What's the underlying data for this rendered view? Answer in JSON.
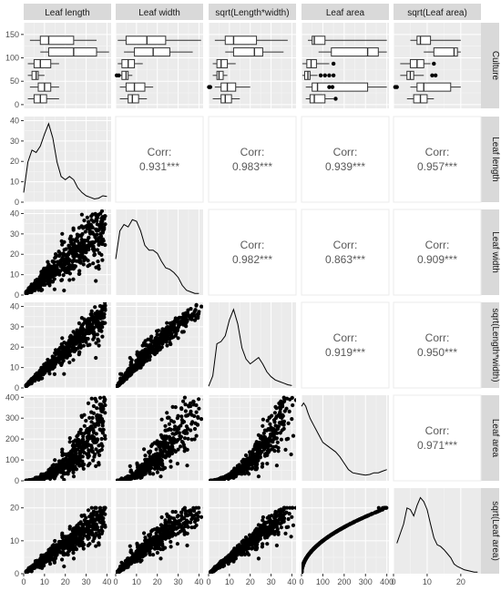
{
  "chart_data": {
    "type": "scatter-matrix",
    "variables": [
      "Leaf length",
      "Leaf width",
      "sqrt(Length*width)",
      "Leaf area",
      "sqrt(Leaf area)",
      "Culture"
    ],
    "row_strips": [
      "Culture",
      "Leaf length",
      "Leaf width",
      "sqrt(Length*width)",
      "Leaf area",
      "sqrt(Leaf area)"
    ],
    "column_ticks": [
      {
        "values": [
          0,
          10,
          20,
          30,
          40
        ],
        "labels": [
          "0",
          "10",
          "20",
          "30",
          "40"
        ],
        "range": [
          0,
          42
        ]
      },
      {
        "values": [
          0,
          10,
          20,
          30,
          40
        ],
        "labels": [
          "0",
          "10",
          "20",
          "30",
          "40"
        ],
        "range": [
          0,
          42
        ]
      },
      {
        "values": [
          0,
          10,
          20,
          30,
          40
        ],
        "labels": [
          "0",
          "10",
          "20",
          "30",
          "40"
        ],
        "range": [
          0,
          42
        ]
      },
      {
        "values": [
          0,
          100,
          200,
          300,
          400
        ],
        "labels": [
          "0",
          "100",
          "200",
          "300",
          "400"
        ],
        "range": [
          0,
          410
        ]
      },
      {
        "values": [
          0,
          10,
          20
        ],
        "labels": [
          "0",
          "10",
          "20"
        ],
        "range": [
          0,
          26
        ]
      }
    ],
    "row_ticks": [
      {
        "values": [
          0,
          50,
          100,
          150
        ],
        "labels": [
          "0",
          "50",
          "100",
          "150"
        ],
        "range": [
          -8,
          175
        ]
      },
      {
        "values": [
          0,
          10,
          20,
          30,
          40
        ],
        "labels": [
          "0",
          "10",
          "20",
          "30",
          "40"
        ],
        "range": [
          0,
          42
        ]
      },
      {
        "values": [
          0,
          10,
          20,
          30,
          40
        ],
        "labels": [
          "0",
          "10",
          "20",
          "30",
          "40"
        ],
        "range": [
          0,
          42
        ]
      },
      {
        "values": [
          0,
          10,
          20,
          30,
          40
        ],
        "labels": [
          "0",
          "10",
          "20",
          "30",
          "40"
        ],
        "range": [
          0,
          42
        ]
      },
      {
        "values": [
          0,
          100,
          200,
          300,
          400
        ],
        "labels": [
          "0",
          "100",
          "200",
          "300",
          "400"
        ],
        "range": [
          0,
          410
        ]
      },
      {
        "values": [
          0,
          10,
          20
        ],
        "labels": [
          "0",
          "10",
          "20"
        ],
        "range": [
          0,
          26
        ]
      }
    ],
    "correlations": [
      {
        "row": 1,
        "col": 1,
        "label": "Corr:",
        "value": "0.931***"
      },
      {
        "row": 1,
        "col": 2,
        "label": "Corr:",
        "value": "0.983***"
      },
      {
        "row": 1,
        "col": 3,
        "label": "Corr:",
        "value": "0.939***"
      },
      {
        "row": 1,
        "col": 4,
        "label": "Corr:",
        "value": "0.957***"
      },
      {
        "row": 2,
        "col": 2,
        "label": "Corr:",
        "value": "0.982***"
      },
      {
        "row": 2,
        "col": 3,
        "label": "Corr:",
        "value": "0.863***"
      },
      {
        "row": 2,
        "col": 4,
        "label": "Corr:",
        "value": "0.909***"
      },
      {
        "row": 3,
        "col": 3,
        "label": "Corr:",
        "value": "0.919***"
      },
      {
        "row": 3,
        "col": 4,
        "label": "Corr:",
        "value": "0.950***"
      },
      {
        "row": 4,
        "col": 4,
        "label": "Corr:",
        "value": "0.971***"
      }
    ],
    "culture_groups": [
      0,
      25,
      50,
      75,
      100,
      125,
      150
    ],
    "boxplots": [
      [
        [
          2,
          5,
          8,
          11,
          17
        ],
        [
          3,
          7,
          10,
          13,
          17
        ],
        [
          2,
          4,
          6,
          7,
          10
        ],
        [
          2,
          5,
          8,
          13,
          17
        ],
        [
          8,
          12,
          24,
          35,
          41
        ],
        [
          3,
          8,
          12,
          24,
          35
        ]
      ],
      [
        [
          2,
          6,
          8,
          11,
          15
        ],
        [
          2,
          5,
          9,
          14,
          18
        ],
        [
          1,
          3,
          5,
          6,
          8
        ],
        [
          1,
          3,
          6,
          9,
          13
        ],
        [
          4,
          9,
          18,
          26,
          37
        ],
        [
          1,
          5,
          15,
          24,
          41
        ]
      ],
      [
        [
          2,
          6,
          8,
          11,
          15
        ],
        [
          3,
          6,
          9,
          13,
          20
        ],
        [
          2,
          4,
          5,
          7,
          9
        ],
        [
          2,
          4,
          6,
          9,
          13
        ],
        [
          8,
          12,
          22,
          26,
          36
        ],
        [
          3,
          8,
          12,
          23,
          38
        ]
      ],
      [
        [
          20,
          40,
          60,
          110,
          150
        ],
        [
          20,
          50,
          75,
          310,
          400
        ],
        [
          4,
          15,
          30,
          40,
          75
        ],
        [
          4,
          25,
          45,
          70,
          130
        ],
        [
          80,
          140,
          310,
          360,
          400
        ],
        [
          30,
          50,
          60,
          110,
          400
        ]
      ],
      [
        [
          4,
          6,
          8,
          10,
          12
        ],
        [
          5,
          7,
          9,
          17,
          20
        ],
        [
          2,
          4,
          5,
          6,
          9
        ],
        [
          2,
          5,
          7,
          9,
          11
        ],
        [
          9,
          12,
          18,
          19,
          20
        ],
        [
          5,
          7,
          8,
          11,
          20
        ]
      ]
    ],
    "outliers": [
      {
        "col": 1,
        "group": 2,
        "values": [
          0.5,
          1.5
        ]
      },
      {
        "col": 2,
        "group": 1,
        "values": [
          0.2,
          0.8
        ]
      },
      {
        "col": 3,
        "group": 1,
        "values": [
          130,
          145
        ]
      },
      {
        "col": 3,
        "group": 2,
        "values": [
          90,
          110,
          130,
          150
        ]
      },
      {
        "col": 3,
        "group": 3,
        "values": [
          150
        ]
      },
      {
        "col": 3,
        "group": 0,
        "values": [
          160
        ]
      },
      {
        "col": 4,
        "group": 2,
        "values": [
          11.5,
          12.5
        ]
      },
      {
        "col": 4,
        "group": 1,
        "values": [
          0.5,
          1
        ]
      },
      {
        "col": 4,
        "group": 3,
        "values": [
          12
        ]
      }
    ],
    "densities": [
      {
        "x": [
          0,
          2,
          4,
          6,
          8,
          10,
          12,
          14,
          16,
          18,
          20,
          22,
          24,
          26,
          28,
          30,
          32,
          34,
          36,
          38,
          40
        ],
        "y": [
          0.12,
          0.5,
          0.65,
          0.62,
          0.7,
          0.85,
          0.98,
          0.8,
          0.5,
          0.32,
          0.28,
          0.32,
          0.28,
          0.18,
          0.12,
          0.08,
          0.06,
          0.04,
          0.05,
          0.08,
          0.07
        ]
      },
      {
        "x": [
          0,
          2,
          4,
          6,
          8,
          10,
          12,
          14,
          16,
          18,
          20,
          22,
          24,
          26,
          28,
          30,
          32,
          34,
          36,
          38,
          40
        ],
        "y": [
          0.45,
          0.8,
          0.88,
          0.85,
          0.94,
          0.92,
          0.8,
          0.62,
          0.56,
          0.56,
          0.52,
          0.42,
          0.34,
          0.32,
          0.28,
          0.22,
          0.12,
          0.06,
          0.04,
          0.02,
          0.02
        ]
      },
      {
        "x": [
          0,
          2,
          4,
          6,
          8,
          10,
          12,
          14,
          16,
          18,
          20,
          22,
          24,
          26,
          28,
          30,
          32,
          34,
          36,
          38,
          40
        ],
        "y": [
          0.02,
          0.15,
          0.55,
          0.58,
          0.65,
          0.85,
          0.98,
          0.8,
          0.5,
          0.36,
          0.3,
          0.34,
          0.38,
          0.3,
          0.2,
          0.14,
          0.1,
          0.08,
          0.06,
          0.04,
          0.03
        ]
      },
      {
        "x": [
          0,
          10,
          20,
          30,
          40,
          60,
          80,
          100,
          120,
          140,
          160,
          180,
          200,
          220,
          240,
          260,
          280,
          300,
          320,
          340,
          360,
          380,
          400
        ],
        "y": [
          0.93,
          0.97,
          0.93,
          0.85,
          0.78,
          0.68,
          0.58,
          0.48,
          0.44,
          0.4,
          0.36,
          0.3,
          0.22,
          0.14,
          0.1,
          0.09,
          0.08,
          0.07,
          0.08,
          0.1,
          0.1,
          0.12,
          0.14
        ]
      },
      {
        "x": [
          1,
          2,
          3,
          4,
          5,
          6,
          7,
          8,
          9,
          10,
          11,
          12,
          13,
          14,
          15,
          16,
          17,
          18,
          19,
          20,
          21,
          22,
          23,
          24,
          25
        ],
        "y": [
          0.38,
          0.5,
          0.62,
          0.82,
          0.8,
          0.72,
          0.85,
          0.95,
          0.9,
          0.8,
          0.62,
          0.45,
          0.36,
          0.34,
          0.3,
          0.25,
          0.2,
          0.12,
          0.09,
          0.07,
          0.05,
          0.04,
          0.03,
          0.02,
          0.02
        ]
      }
    ],
    "scatter": {
      "points_per_panel": 700
    },
    "xlabel": "",
    "ylabel": "",
    "grid": true
  }
}
